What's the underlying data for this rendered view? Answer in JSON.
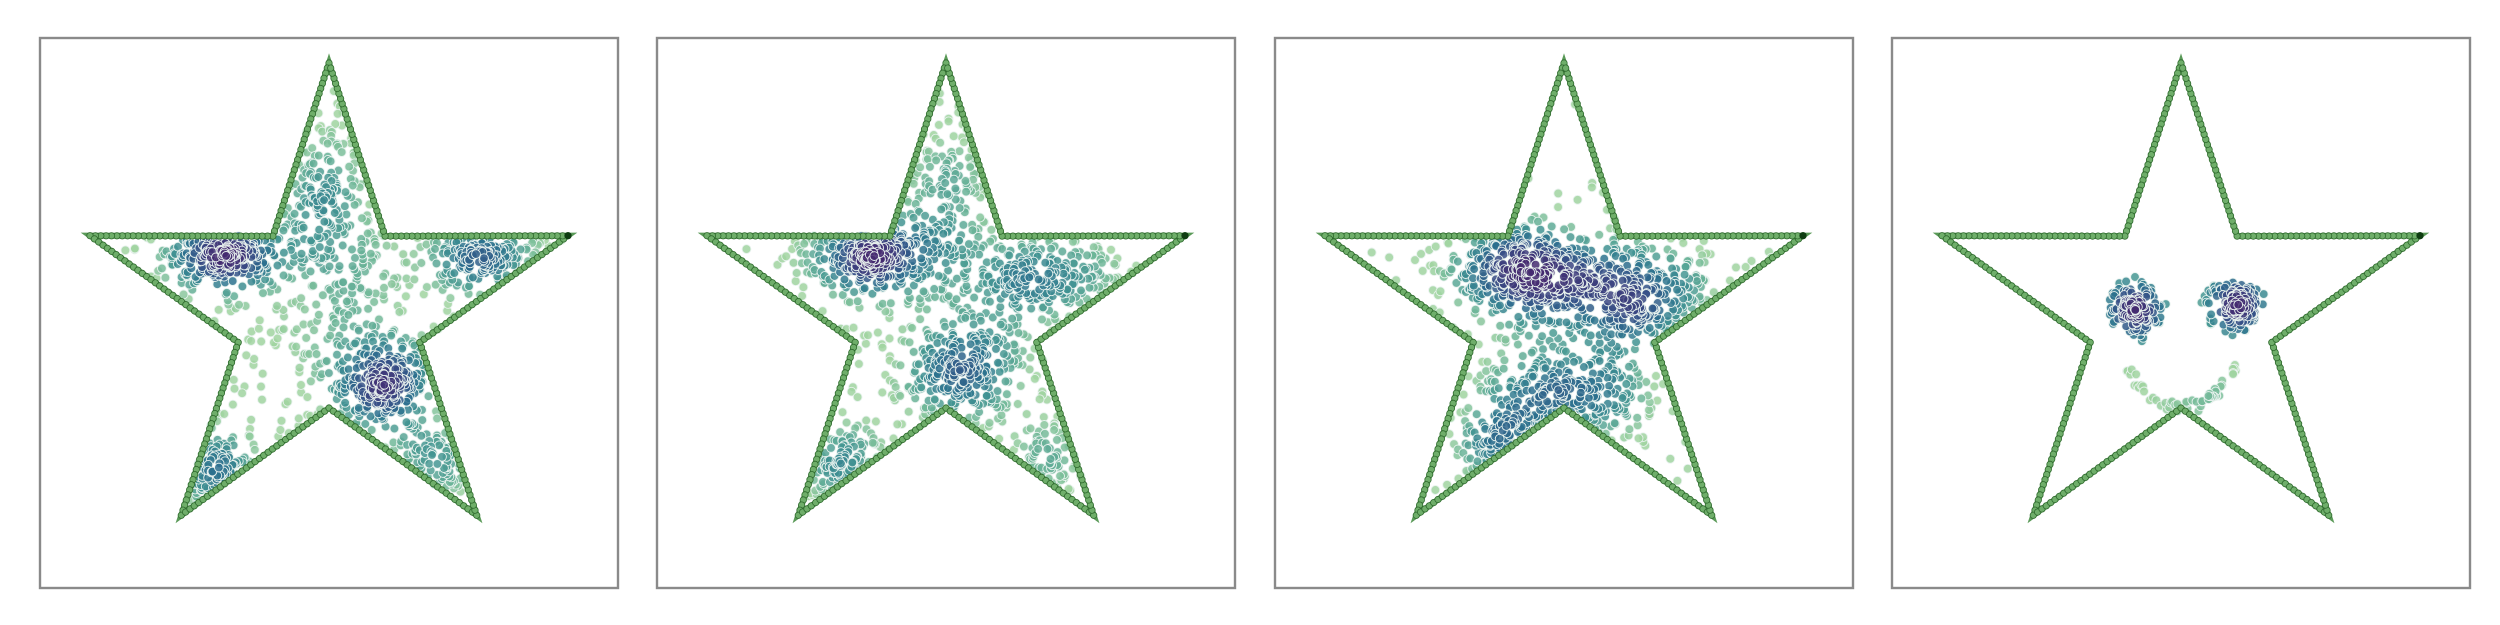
{
  "chart_data": [
    {
      "type": "scatter",
      "panel": 1,
      "title": "",
      "xlabel": "",
      "ylabel": "",
      "grid": false,
      "xlim": [
        -1.15,
        1.15
      ],
      "ylim": [
        -1.1,
        1.1
      ],
      "boundary": {
        "shape": "star",
        "color": "#5a9a58",
        "outer_radius": 1.0,
        "inner_radius": 0.38
      },
      "clusters": [
        {
          "x": -0.42,
          "y": 0.26,
          "sx": 0.12,
          "sy": 0.07,
          "n": 260
        },
        {
          "x": 0.2,
          "y": -0.28,
          "sx": 0.11,
          "sy": 0.1,
          "n": 260
        },
        {
          "x": 0.62,
          "y": 0.22,
          "sx": 0.15,
          "sy": 0.06,
          "n": 170
        },
        {
          "x": -0.45,
          "y": -0.65,
          "sx": 0.1,
          "sy": 0.09,
          "n": 120
        },
        {
          "x": 0.0,
          "y": 0.45,
          "sx": 0.1,
          "sy": 0.22,
          "n": 190
        },
        {
          "x": 0.42,
          "y": -0.62,
          "sx": 0.09,
          "sy": 0.1,
          "n": 90
        },
        {
          "x": -0.02,
          "y": 0.05,
          "sx": 0.5,
          "sy": 0.35,
          "n": 300
        }
      ]
    },
    {
      "type": "scatter",
      "panel": 2,
      "title": "",
      "xlabel": "",
      "ylabel": "",
      "grid": false,
      "xlim": [
        -1.15,
        1.15
      ],
      "ylim": [
        -1.1,
        1.1
      ],
      "boundary": {
        "shape": "star",
        "color": "#5a9a58",
        "outer_radius": 1.0,
        "inner_radius": 0.38
      },
      "clusters": [
        {
          "x": -0.3,
          "y": 0.24,
          "sx": 0.13,
          "sy": 0.08,
          "n": 300
        },
        {
          "x": 0.05,
          "y": -0.25,
          "sx": 0.15,
          "sy": 0.12,
          "n": 280
        },
        {
          "x": 0.38,
          "y": 0.15,
          "sx": 0.17,
          "sy": 0.08,
          "n": 220
        },
        {
          "x": -0.4,
          "y": -0.62,
          "sx": 0.1,
          "sy": 0.09,
          "n": 110
        },
        {
          "x": 0.0,
          "y": 0.48,
          "sx": 0.1,
          "sy": 0.2,
          "n": 140
        },
        {
          "x": 0.38,
          "y": -0.62,
          "sx": 0.09,
          "sy": 0.1,
          "n": 70
        },
        {
          "x": 0.0,
          "y": 0.05,
          "sx": 0.45,
          "sy": 0.35,
          "n": 200
        }
      ]
    },
    {
      "type": "scatter",
      "panel": 3,
      "title": "",
      "xlabel": "",
      "ylabel": "",
      "grid": false,
      "xlim": [
        -1.15,
        1.15
      ],
      "ylim": [
        -1.1,
        1.1
      ],
      "boundary": {
        "shape": "star",
        "color": "#5a9a58",
        "outer_radius": 1.0,
        "inner_radius": 0.38
      },
      "clusters": [
        {
          "x": -0.2,
          "y": 0.18,
          "sx": 0.16,
          "sy": 0.1,
          "n": 330
        },
        {
          "x": 0.28,
          "y": 0.08,
          "sx": 0.18,
          "sy": 0.12,
          "n": 320
        },
        {
          "x": 0.02,
          "y": -0.35,
          "sx": 0.2,
          "sy": 0.12,
          "n": 280
        },
        {
          "x": -0.15,
          "y": -0.55,
          "sx": 0.15,
          "sy": 0.08,
          "n": 120
        },
        {
          "x": 0.0,
          "y": 0.0,
          "sx": 0.42,
          "sy": 0.32,
          "n": 170
        }
      ]
    },
    {
      "type": "scatter",
      "panel": 4,
      "title": "",
      "xlabel": "",
      "ylabel": "",
      "grid": false,
      "xlim": [
        -1.15,
        1.15
      ],
      "ylim": [
        -1.1,
        1.1
      ],
      "boundary": {
        "shape": "star",
        "color": "#5a9a58",
        "outer_radius": 1.0,
        "inner_radius": 0.38
      },
      "clusters": [
        {
          "x": -0.18,
          "y": 0.02,
          "sx": 0.04,
          "sy": 0.04,
          "n": 90
        },
        {
          "x": 0.23,
          "y": 0.02,
          "sx": 0.04,
          "sy": 0.04,
          "n": 90
        }
      ],
      "rings": [
        {
          "x": -0.18,
          "y": 0.02,
          "r": 0.1,
          "n": 45
        },
        {
          "x": 0.2,
          "y": 0.02,
          "r": 0.1,
          "n": 45
        }
      ],
      "arcs": [
        {
          "x": 0.0,
          "y": -0.15,
          "r": 0.22,
          "from_deg": 200,
          "to_deg": 345,
          "n": 55
        }
      ]
    }
  ]
}
